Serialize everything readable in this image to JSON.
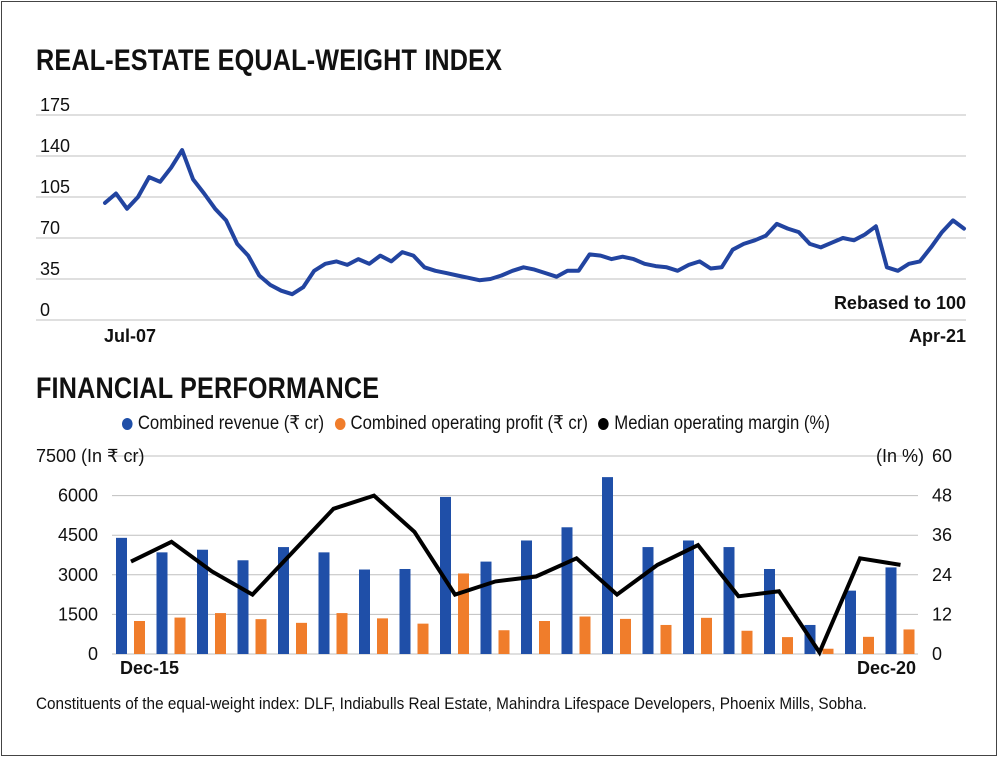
{
  "colors": {
    "revenue": "#1f4fa8",
    "profit": "#f07d2b",
    "margin": "#000000",
    "index_line": "#2244a0",
    "grid": "#bfbfbf"
  },
  "chart_data": [
    {
      "type": "line",
      "title": "REAL-ESTATE EQUAL-WEIGHT INDEX",
      "note": "Rebased to 100",
      "x_start_label": "Jul-07",
      "x_end_label": "Apr-21",
      "yticks": [
        0,
        35,
        70,
        105,
        140,
        175
      ],
      "ylim": [
        0,
        175
      ],
      "grid": true,
      "series": [
        {
          "values": [
            100,
            108,
            95,
            105,
            122,
            118,
            130,
            145,
            120,
            108,
            95,
            85,
            65,
            55,
            38,
            30,
            25,
            22,
            28,
            42,
            48,
            50,
            47,
            52,
            48,
            55,
            50,
            58,
            55,
            45,
            42,
            40,
            38,
            36,
            34,
            35,
            38,
            42,
            45,
            43,
            40,
            37,
            42,
            42,
            56,
            55,
            52,
            54,
            52,
            48,
            46,
            45,
            42,
            47,
            50,
            44,
            45,
            60,
            65,
            68,
            72,
            82,
            78,
            75,
            65,
            62,
            66,
            70,
            68,
            73,
            80,
            45,
            42,
            48,
            50,
            62,
            75,
            85,
            78
          ]
        }
      ]
    },
    {
      "type": "bar",
      "title": "FINANCIAL PERFORMANCE",
      "x_start_label": "Dec-15",
      "x_end_label": "Dec-20",
      "left_axis_title": "7500 (In ₹ cr)",
      "right_axis_title": "(In %)",
      "yticks_left": [
        0,
        1500,
        3000,
        4500,
        6000
      ],
      "yticks_right": [
        0,
        12,
        24,
        36,
        48,
        60
      ],
      "ylim_left": [
        0,
        7500
      ],
      "ylim_right": [
        0,
        60
      ],
      "legend": [
        "Combined revenue (₹ cr)",
        "Combined operating profit (₹ cr)",
        "Median operating margin (%)"
      ],
      "series": [
        {
          "name": "Combined revenue (₹ cr)",
          "values": [
            4400,
            3850,
            3950,
            3550,
            4050,
            3850,
            3200,
            3220,
            5950,
            3500,
            4300,
            4800,
            6700,
            4050,
            4300,
            4050,
            3220,
            1100,
            2400,
            3280
          ]
        },
        {
          "name": "Combined operating profit (₹ cr)",
          "values": [
            1250,
            1380,
            1550,
            1320,
            1180,
            1550,
            1350,
            1150,
            3050,
            900,
            1250,
            1420,
            1330,
            1100,
            1370,
            880,
            640,
            200,
            650,
            930
          ]
        },
        {
          "name": "Median operating margin (%)",
          "values": [
            28,
            34,
            25,
            18,
            31,
            44,
            48,
            37,
            18,
            22,
            23.5,
            29,
            18,
            27,
            33,
            17.5,
            19,
            0.5,
            29,
            27
          ]
        }
      ]
    }
  ],
  "footnote": "Constituents of the equal-weight index: DLF, Indiabulls Real Estate, Mahindra Lifespace Developers, Phoenix Mills, Sobha."
}
